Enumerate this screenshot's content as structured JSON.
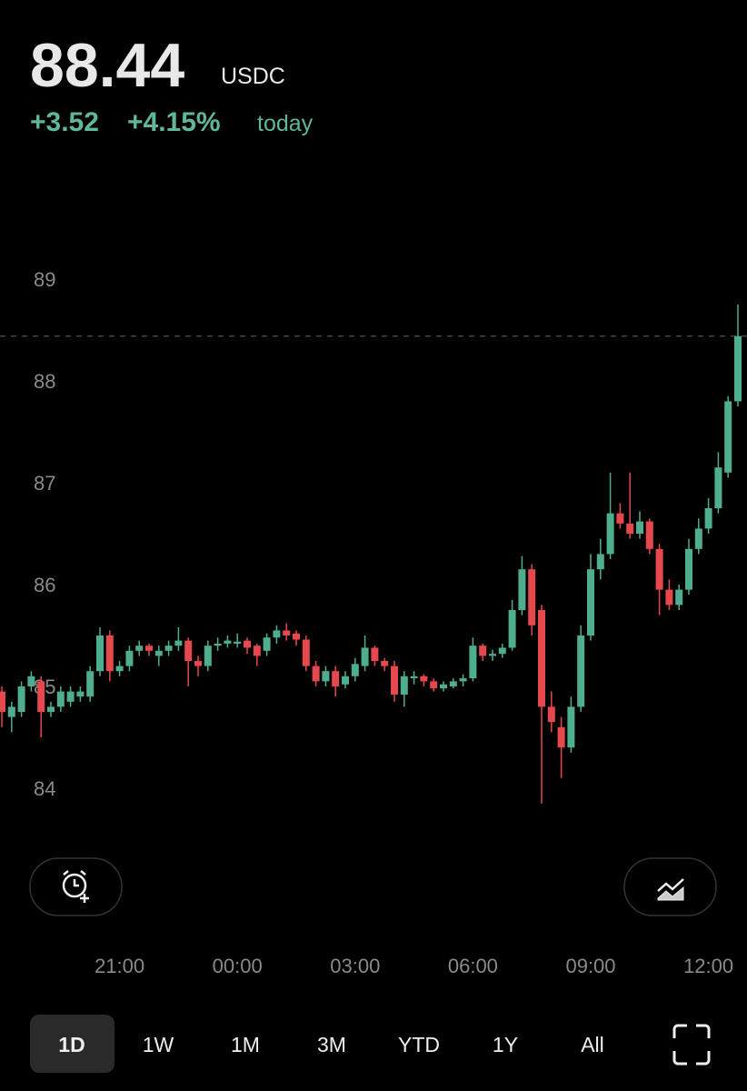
{
  "header": {
    "price": 88.44,
    "currency": "USDC",
    "change": "+3.52",
    "change_percent": "+4.15%",
    "period": "today"
  },
  "chart_data": {
    "type": "candlestick",
    "categories": [
      null,
      null,
      null,
      null,
      null,
      null,
      null,
      null,
      null,
      null,
      null,
      null,
      "21:00",
      null,
      null,
      null,
      null,
      null,
      null,
      null,
      null,
      null,
      null,
      null,
      "00:00",
      null,
      null,
      null,
      null,
      null,
      null,
      null,
      null,
      null,
      null,
      null,
      "03:00",
      null,
      null,
      null,
      null,
      null,
      null,
      null,
      null,
      null,
      null,
      null,
      "06:00",
      null,
      null,
      null,
      null,
      null,
      null,
      null,
      null,
      null,
      null,
      null,
      "09:00",
      null,
      null,
      null,
      null,
      null,
      null,
      null,
      null,
      null,
      null,
      null,
      "12:00",
      null,
      null,
      null
    ],
    "open": [
      84.95,
      84.7,
      84.75,
      85.0,
      85.05,
      84.75,
      84.8,
      84.85,
      84.9,
      84.9,
      85.15,
      85.5,
      85.15,
      85.2,
      85.35,
      85.4,
      85.3,
      85.35,
      85.4,
      85.45,
      85.25,
      85.2,
      85.4,
      85.42,
      85.42,
      85.45,
      85.4,
      85.35,
      85.48,
      85.55,
      85.52,
      85.46,
      85.2,
      85.05,
      85.15,
      85.02,
      85.1,
      85.2,
      85.38,
      85.25,
      85.2,
      84.92,
      85.08,
      85.1,
      85.05,
      84.98,
      85.0,
      85.05,
      85.08,
      85.4,
      85.3,
      85.32,
      85.38,
      85.75,
      86.15,
      85.75,
      84.8,
      84.6,
      84.4,
      84.8,
      85.5,
      86.15,
      86.3,
      86.7,
      86.6,
      86.5,
      86.62,
      86.35,
      85.95,
      85.8,
      85.95,
      86.35,
      86.55,
      86.75,
      87.1,
      87.8
    ],
    "high": [
      85.0,
      84.85,
      85.05,
      85.15,
      85.1,
      84.85,
      85.0,
      85.0,
      85.0,
      85.2,
      85.58,
      85.55,
      85.25,
      85.4,
      85.45,
      85.42,
      85.4,
      85.45,
      85.58,
      85.48,
      85.3,
      85.45,
      85.48,
      85.5,
      85.52,
      85.48,
      85.42,
      85.52,
      85.6,
      85.62,
      85.55,
      85.5,
      85.25,
      85.2,
      85.2,
      85.15,
      85.28,
      85.5,
      85.4,
      85.28,
      85.25,
      85.15,
      85.15,
      85.12,
      85.08,
      85.05,
      85.08,
      85.12,
      85.48,
      85.42,
      85.36,
      85.42,
      85.85,
      86.28,
      86.2,
      85.8,
      84.95,
      84.7,
      84.9,
      85.6,
      86.3,
      86.45,
      87.1,
      86.8,
      87.1,
      86.72,
      86.65,
      86.4,
      86.05,
      86.0,
      86.45,
      86.65,
      86.85,
      87.3,
      87.85,
      88.75
    ],
    "low": [
      84.6,
      84.55,
      84.7,
      84.95,
      84.5,
      84.7,
      84.75,
      84.8,
      84.85,
      84.85,
      85.1,
      85.05,
      85.1,
      85.15,
      85.3,
      85.3,
      85.2,
      85.3,
      85.35,
      85.0,
      85.1,
      85.15,
      85.35,
      85.38,
      85.38,
      85.32,
      85.2,
      85.3,
      85.42,
      85.45,
      85.4,
      85.15,
      85.0,
      85.0,
      84.9,
      84.98,
      85.05,
      85.15,
      85.2,
      85.15,
      84.85,
      84.8,
      85.02,
      85.0,
      84.95,
      84.95,
      84.98,
      85.0,
      85.05,
      85.25,
      85.25,
      85.28,
      85.35,
      85.7,
      85.5,
      83.85,
      84.55,
      84.1,
      84.35,
      84.75,
      85.45,
      86.05,
      86.25,
      86.55,
      86.45,
      86.45,
      86.3,
      85.7,
      85.75,
      85.75,
      85.9,
      86.3,
      86.5,
      86.7,
      87.05,
      87.75
    ],
    "close": [
      84.75,
      84.8,
      85.0,
      85.1,
      84.75,
      84.8,
      84.95,
      84.95,
      84.95,
      85.15,
      85.5,
      85.15,
      85.2,
      85.35,
      85.4,
      85.35,
      85.35,
      85.4,
      85.45,
      85.25,
      85.2,
      85.4,
      85.42,
      85.45,
      85.44,
      85.38,
      85.3,
      85.48,
      85.55,
      85.5,
      85.46,
      85.2,
      85.05,
      85.15,
      85.0,
      85.1,
      85.22,
      85.38,
      85.25,
      85.2,
      84.92,
      85.1,
      85.1,
      85.05,
      84.98,
      85.02,
      85.05,
      85.08,
      85.4,
      85.3,
      85.32,
      85.38,
      85.75,
      86.15,
      85.6,
      84.8,
      84.65,
      84.4,
      84.8,
      85.5,
      86.15,
      86.3,
      86.7,
      86.6,
      86.5,
      86.62,
      86.35,
      85.95,
      85.8,
      85.95,
      86.35,
      86.55,
      86.75,
      87.15,
      87.8,
      88.44
    ],
    "up_color": "#4fae8f",
    "down_color": "#e5484d",
    "ylim": [
      83.5,
      89.5
    ],
    "yticks": [
      84,
      85,
      86,
      87,
      88,
      89
    ]
  },
  "range_tabs": [
    "1D",
    "1W",
    "1M",
    "3M",
    "YTD",
    "1Y",
    "All"
  ]
}
